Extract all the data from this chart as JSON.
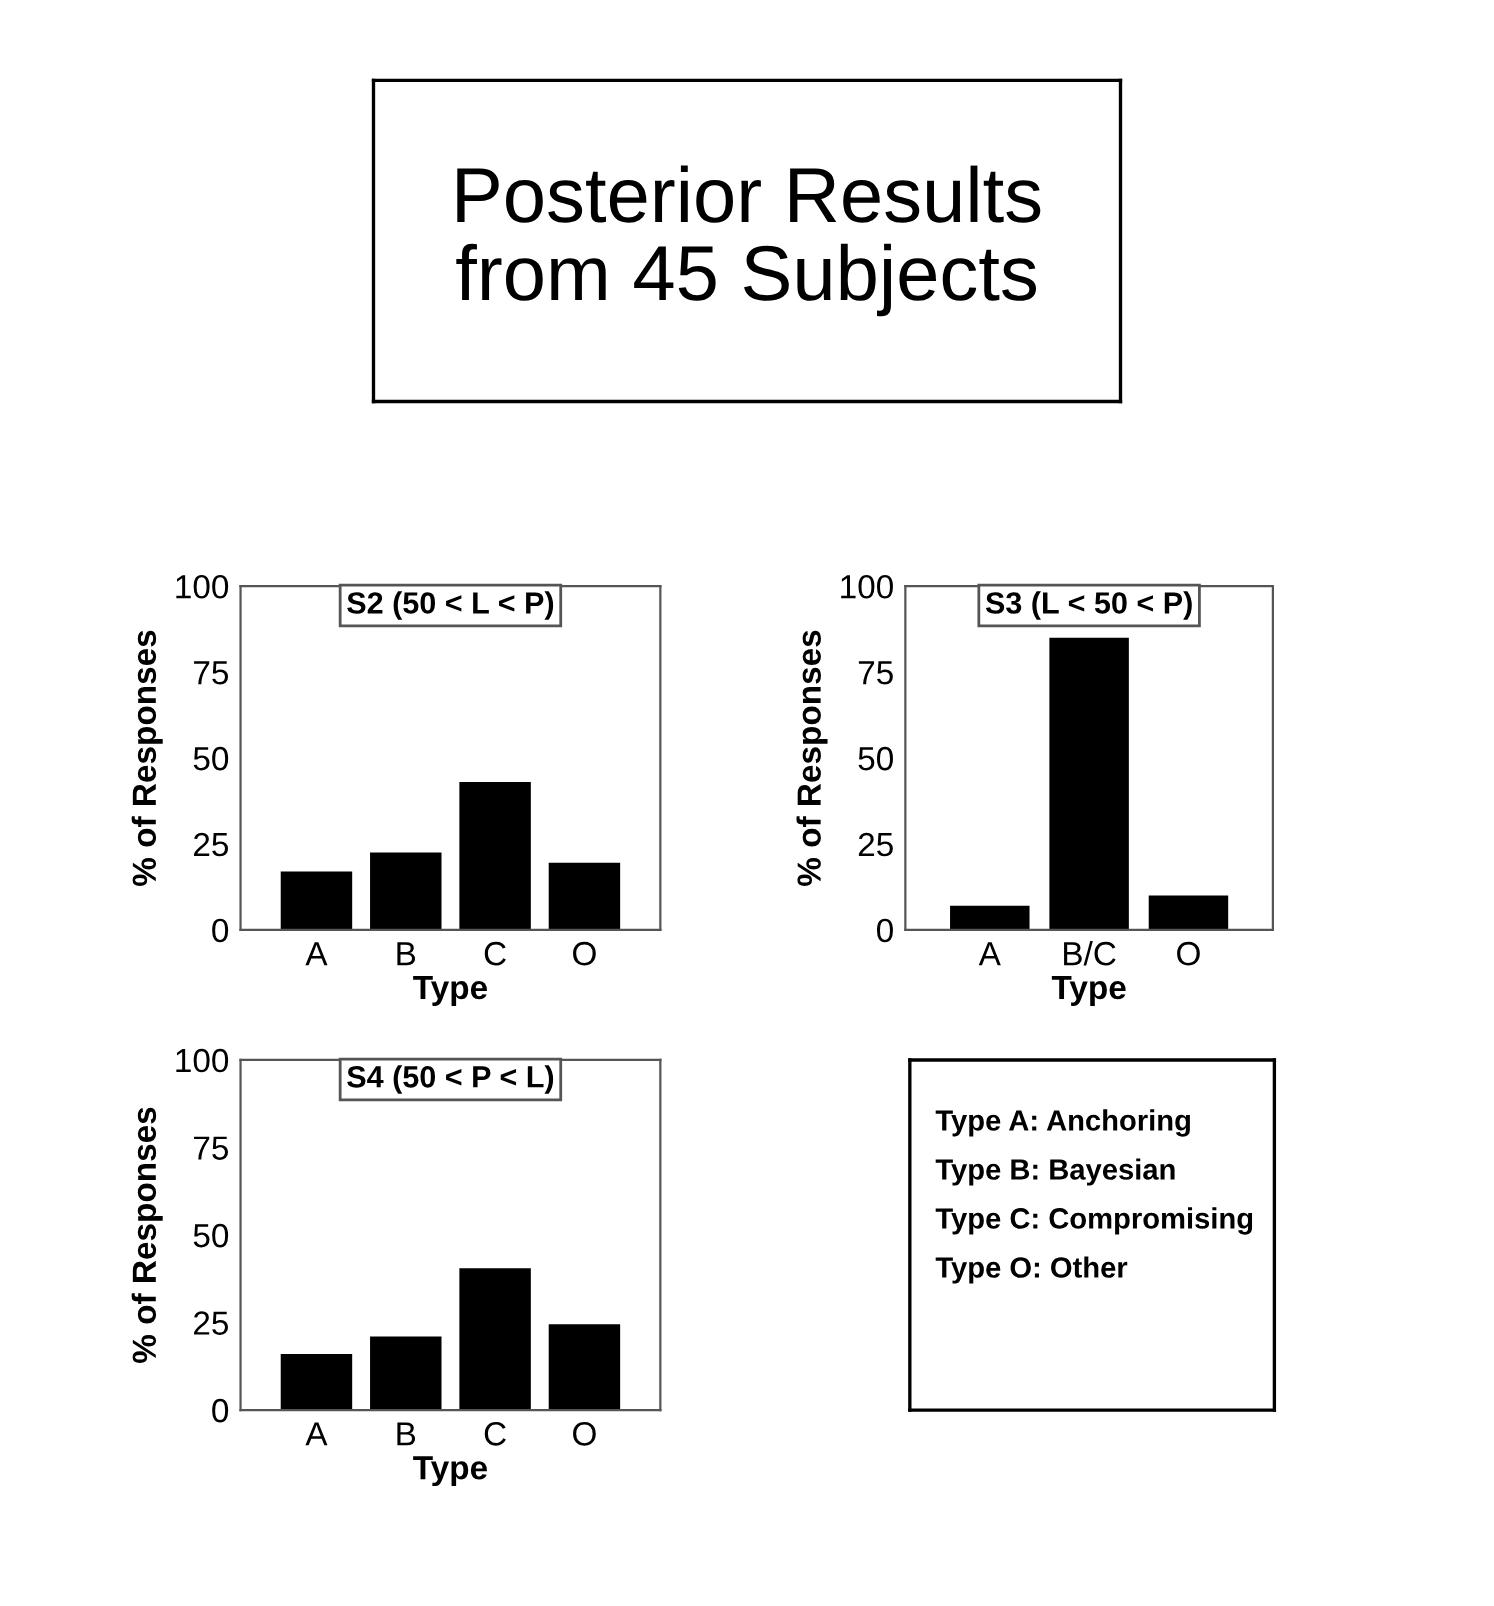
{
  "chart_data": [
    {
      "type": "other",
      "title": "Posterior Results\nfrom 45 Subjects"
    },
    {
      "type": "bar",
      "title": "S2 (50 < L < P)",
      "xlabel": "Type",
      "ylabel": "% of Responses",
      "categories": [
        "A",
        "B",
        "C",
        "O"
      ],
      "values": [
        17,
        22.5,
        43,
        19.5
      ],
      "color": "#000000",
      "ylim": [
        0,
        100
      ],
      "yticks": [
        0,
        25,
        50,
        75,
        100
      ],
      "grid": false,
      "legend": false
    },
    {
      "type": "bar",
      "title": "S3 (L < 50 < P)",
      "xlabel": "Type",
      "ylabel": "% of Responses",
      "categories": [
        "A",
        "B/C",
        "O"
      ],
      "values": [
        7,
        85,
        10
      ],
      "color": "#000000",
      "ylim": [
        0,
        100
      ],
      "yticks": [
        0,
        25,
        50,
        75,
        100
      ],
      "grid": false,
      "legend": false
    },
    {
      "type": "bar",
      "title": "S4 (50 < P < L)",
      "xlabel": "Type",
      "ylabel": "% of Responses",
      "categories": [
        "A",
        "B",
        "C",
        "O"
      ],
      "values": [
        16,
        21,
        40.5,
        24.5
      ],
      "color": "#000000",
      "ylim": [
        0,
        100
      ],
      "yticks": [
        0,
        25,
        50,
        75,
        100
      ],
      "grid": false,
      "legend": false
    },
    {
      "type": "other",
      "annotations": [
        "Type A: Anchoring",
        "Type B: Bayesian",
        "Type C: Compromising",
        "Type O: Other"
      ]
    }
  ]
}
